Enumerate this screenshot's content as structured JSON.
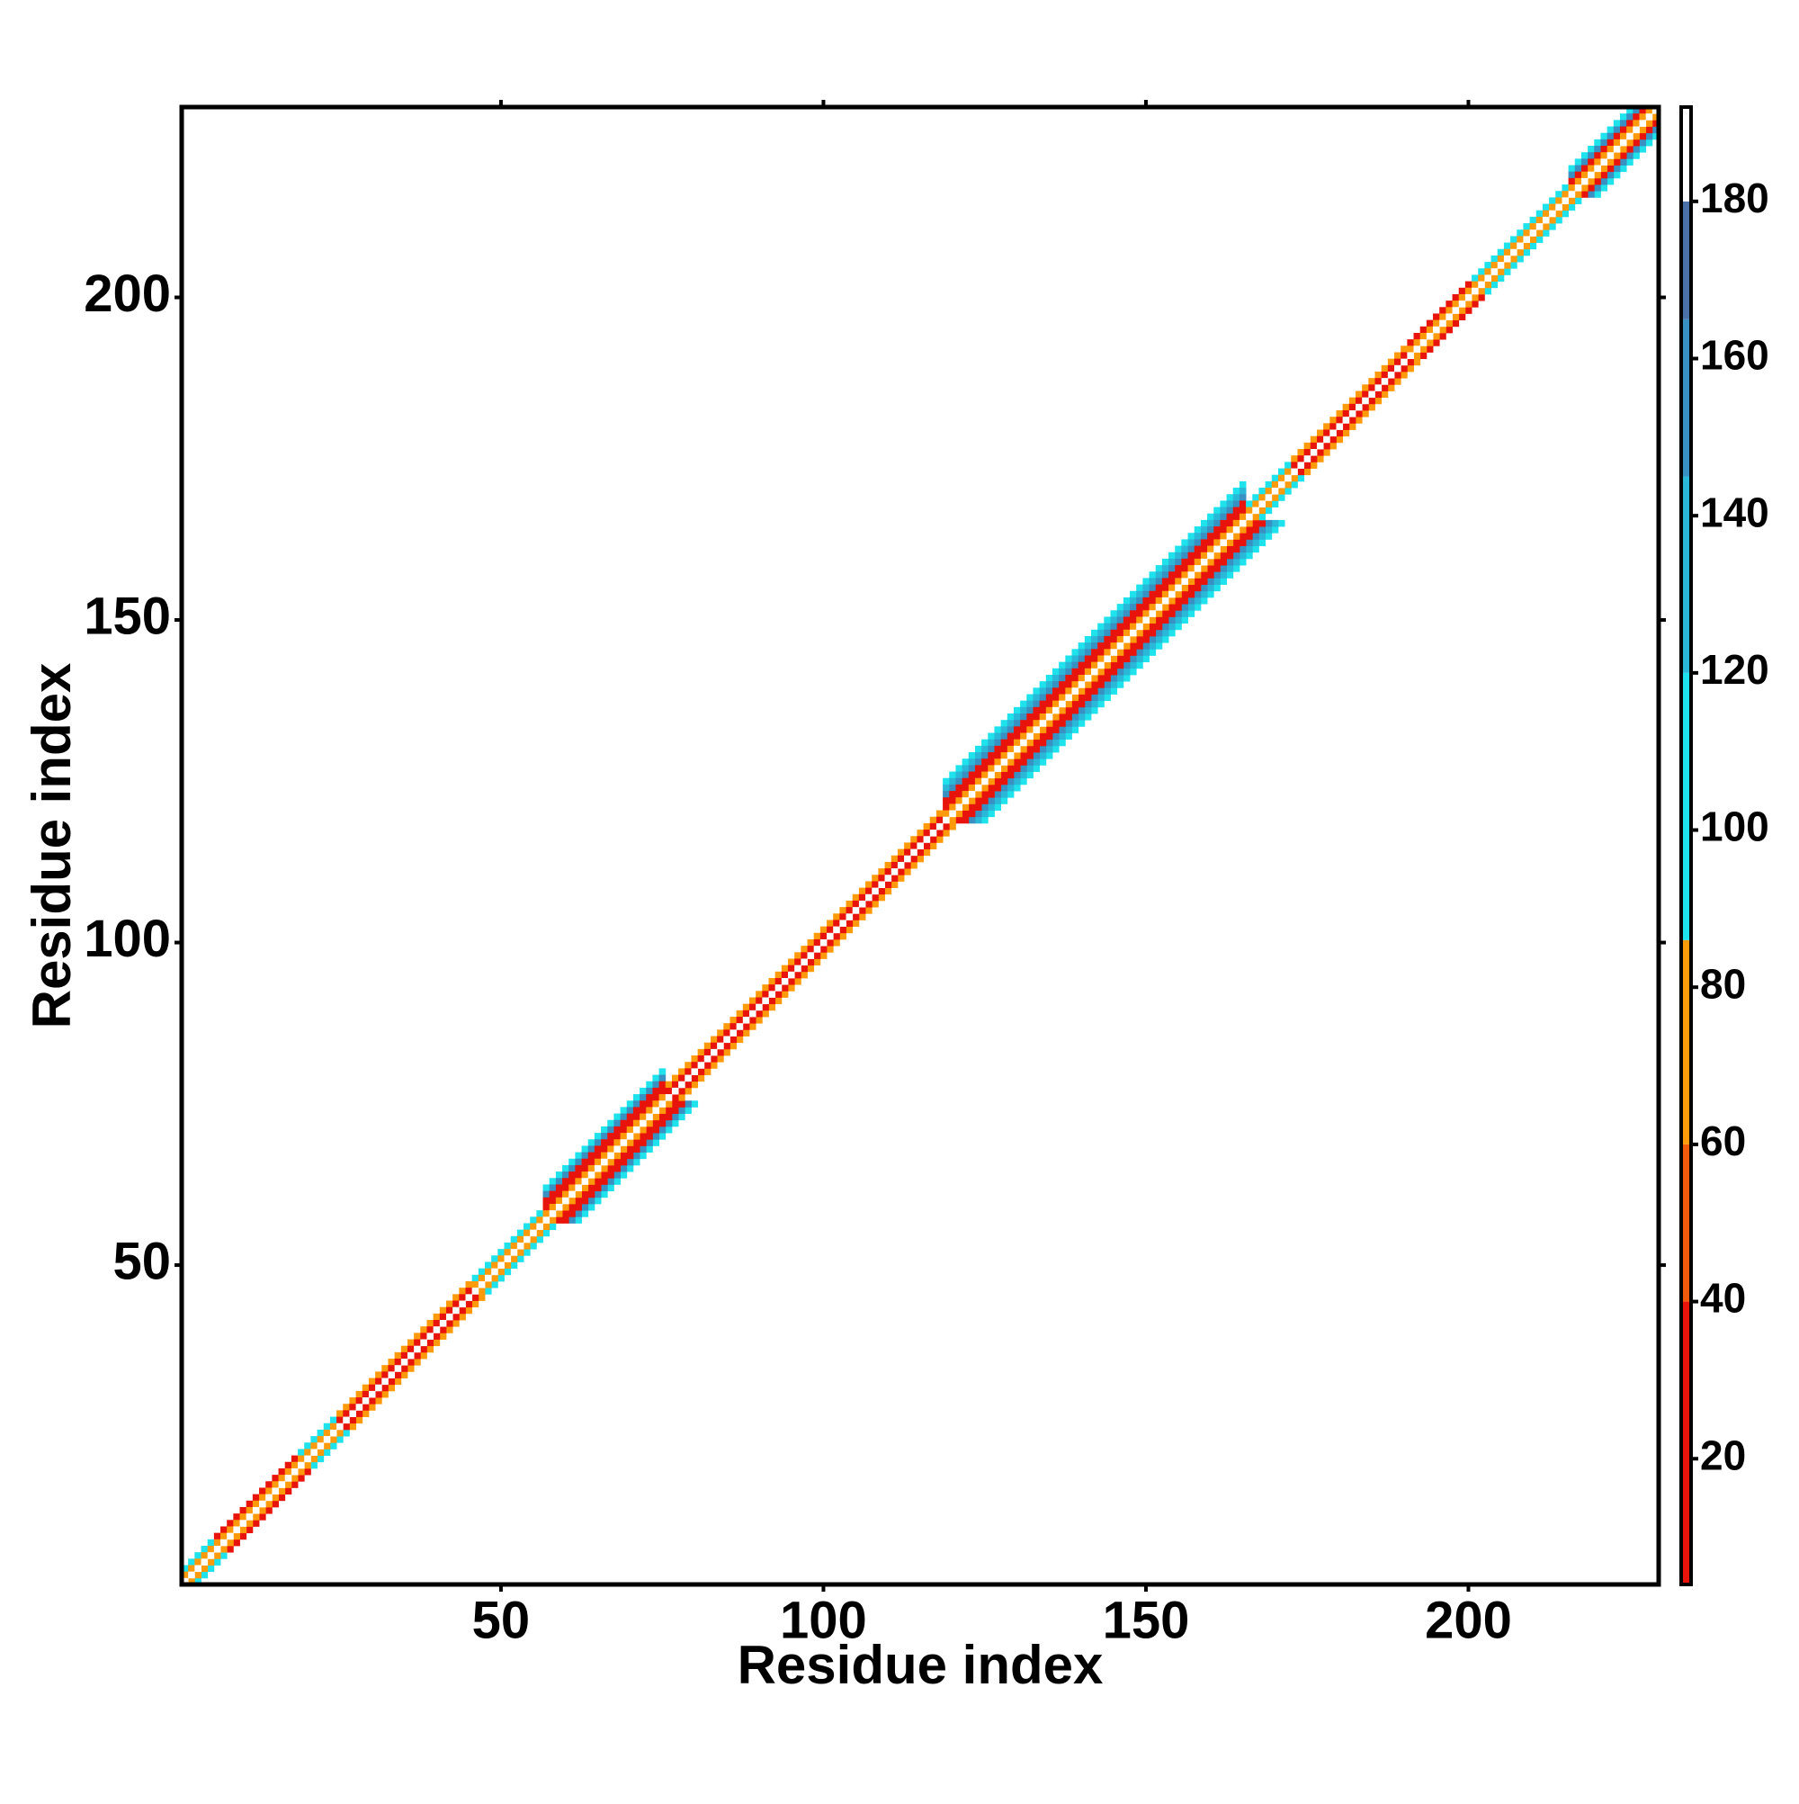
{
  "chart_data": {
    "type": "heatmap",
    "xlabel": "Residue index",
    "ylabel": "Residue index",
    "xlim": [
      0.5,
      229.5
    ],
    "ylim": [
      0.5,
      229.5
    ],
    "xticks": [
      50,
      100,
      150,
      200
    ],
    "yticks": [
      50,
      100,
      150,
      200
    ],
    "segments": [
      {
        "start": 1,
        "end": 5,
        "profile": [
          190,
          70,
          100
        ]
      },
      {
        "start": 6,
        "end": 18,
        "profile": [
          190,
          70,
          30
        ]
      },
      {
        "start": 19,
        "end": 24,
        "profile": [
          190,
          70,
          100
        ]
      },
      {
        "start": 25,
        "end": 45,
        "profile": [
          190,
          30,
          60
        ]
      },
      {
        "start": 46,
        "end": 56,
        "profile": [
          190,
          70,
          100
        ]
      },
      {
        "start": 57,
        "end": 75,
        "profile": [
          190,
          65,
          30,
          20,
          150,
          100
        ]
      },
      {
        "start": 76,
        "end": 118,
        "profile": [
          190,
          30,
          70
        ]
      },
      {
        "start": 119,
        "end": 165,
        "profile": [
          190,
          65,
          30,
          20,
          150,
          130,
          100
        ]
      },
      {
        "start": 166,
        "end": 172,
        "profile": [
          190,
          70,
          100
        ]
      },
      {
        "start": 173,
        "end": 190,
        "profile": [
          190,
          30,
          70
        ]
      },
      {
        "start": 191,
        "end": 200,
        "profile": [
          190,
          70,
          30
        ]
      },
      {
        "start": 201,
        "end": 215,
        "profile": [
          190,
          70,
          100
        ]
      },
      {
        "start": 216,
        "end": 229,
        "profile": [
          190,
          65,
          30,
          150,
          100
        ]
      }
    ],
    "clim": [
      4,
      192
    ],
    "cticks": [
      20,
      40,
      60,
      80,
      100,
      120,
      140,
      160,
      180
    ],
    "colorscale": [
      {
        "value": 4,
        "color": "#e8140c"
      },
      {
        "value": 40,
        "color": "#f05a0a"
      },
      {
        "value": 60,
        "color": "#ff9a0a"
      },
      {
        "value": 86,
        "color": "#1ee3ec"
      },
      {
        "value": 120,
        "color": "#2ab8d8"
      },
      {
        "value": 145,
        "color": "#3990c2"
      },
      {
        "value": 165,
        "color": "#4a72a6"
      },
      {
        "value": 180,
        "color": "#ffffff"
      }
    ]
  }
}
